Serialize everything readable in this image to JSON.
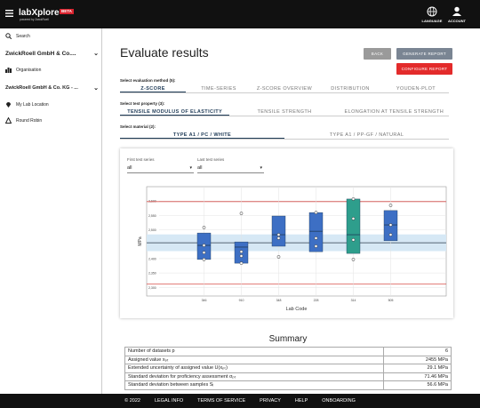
{
  "header": {
    "brand": "labXplore",
    "badge": "BETA",
    "powered": "powered by ZwickRoell",
    "language": "LANGUAGE",
    "account": "ACCOUNT"
  },
  "sidebar": {
    "items": [
      "Search",
      "ZwickRoell GmbH & Co....",
      "Organisation",
      "ZwickRoell GmbH & Co. KG - ...",
      "My Lab Location",
      "Round Robin"
    ]
  },
  "main": {
    "title": "Evaluate results",
    "buttons": [
      "BACK",
      "GENERATE REPORT",
      "CONFIGURE REPORT"
    ],
    "selectors": [
      {
        "label": "Select evaluation method (5):",
        "options": [
          "Z-SCORE",
          "TIME-SERIES",
          "Z-SCORE OVERVIEW",
          "DISTRIBUTION",
          "YOUDEN-PLOT"
        ],
        "selected": 0
      },
      {
        "label": "Select test property (3):",
        "options": [
          "TENSILE MODULUS OF ELASTICITY",
          "TENSILE STRENGTH",
          "ELONGATION AT TENSILE STRENGTH"
        ],
        "selected": 0
      },
      {
        "label": "Select material (2):",
        "options": [
          "TYPE A1 / PC / WHITE",
          "TYPE A1 / PP-GF / NATURAL"
        ],
        "selected": 0
      }
    ],
    "filters": [
      {
        "label": "First test series",
        "value": "all"
      },
      {
        "label": "Last test series",
        "value": "all"
      }
    ]
  },
  "chart_data": {
    "type": "box",
    "y_label": "MPa",
    "x_label": "Lab Code",
    "categories": [
      "346",
      "910",
      "348",
      "228",
      "314",
      "505"
    ],
    "boxes": [
      {
        "q1": 2397,
        "median": 2446,
        "q3": 2489,
        "points": [
          2508,
          2446,
          2421,
          2397
        ],
        "color": "#3d6fc4"
      },
      {
        "q1": 2384,
        "median": 2440,
        "q3": 2458,
        "points": [
          2557,
          2424,
          2409,
          2384
        ],
        "color": "#3d6fc4"
      },
      {
        "q1": 2443,
        "median": 2483,
        "q3": 2548,
        "points": [
          2483,
          2471,
          2406
        ],
        "color": "#3d6fc4"
      },
      {
        "q1": 2424,
        "median": 2495,
        "q3": 2560,
        "points": [
          2560,
          2471,
          2443
        ],
        "color": "#3d6fc4"
      },
      {
        "q1": 2418,
        "median": 2483,
        "q3": 2607,
        "points": [
          2607,
          2539,
          2465,
          2397
        ],
        "color": "#2e9e8c"
      },
      {
        "q1": 2462,
        "median": 2517,
        "q3": 2567,
        "points": [
          2585,
          2517,
          2483
        ],
        "color": "#3d6fc4"
      }
    ],
    "assigned_value": 2455,
    "uncertainty": 29.1,
    "limits": [
      2312,
      2598
    ],
    "assigned_color": "#2b3a4a",
    "band_color": "#d6e8f5",
    "limit_color": "#d9534f",
    "ylim": [
      2270,
      2650
    ],
    "yticks": [
      {
        "value": 2300,
        "label": "2,300"
      },
      {
        "value": 2350,
        "label": "2,350"
      },
      {
        "value": 2400,
        "label": "2,400"
      },
      {
        "value": 2450,
        "label": "2,450"
      },
      {
        "value": 2500,
        "label": "2,500"
      },
      {
        "value": 2550,
        "label": "2,550"
      },
      {
        "value": 2600,
        "label": "2,600"
      }
    ],
    "grid": true
  },
  "summary": {
    "title": "Summary",
    "rows": [
      [
        "Number of datasets p",
        "6"
      ],
      [
        "Assigned value xₚₜ",
        "2455 MPa"
      ],
      [
        "Extended uncertainty of assigned value U(xₚₜ)",
        "29.1 MPa"
      ],
      [
        "Standard deviation for proficiency assessment σₚₜ",
        "71.46 MPa"
      ],
      [
        "Standard deviation between samples Sᵢ",
        "56.6 MPa"
      ]
    ]
  },
  "footer": {
    "links": [
      "© 2022",
      "LEGAL INFO",
      "TERMS OF SERVICE",
      "PRIVACY",
      "HELP",
      "ONBOARDING"
    ]
  }
}
